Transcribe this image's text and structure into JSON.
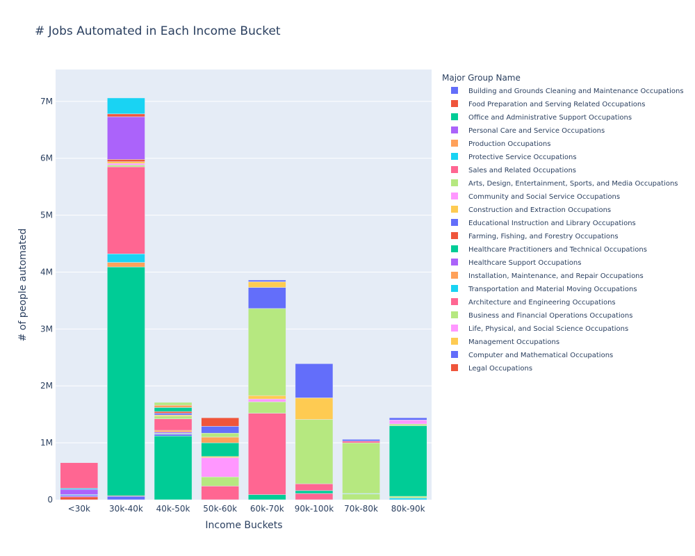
{
  "chart_data": {
    "type": "bar",
    "barmode": "stack",
    "title": "# Jobs Automated in Each Income Bucket",
    "xlabel": "Income Buckets",
    "ylabel": "# of people automated",
    "categories": [
      "<30k",
      "30k-40k",
      "40k-50k",
      "50k-60k",
      "60k-70k",
      "90k-100k",
      "70k-80k",
      "80k-90k"
    ],
    "ylim": [
      0,
      7560000
    ],
    "yticks": [
      0,
      1000000,
      2000000,
      3000000,
      4000000,
      5000000,
      6000000,
      7000000
    ],
    "ytick_labels": [
      "0",
      "1M",
      "2M",
      "3M",
      "4M",
      "5M",
      "6M",
      "7M"
    ],
    "grid": true,
    "legend_title": "Major Group Name",
    "legend_position": "right",
    "series": [
      {
        "name": "Building and Grounds Cleaning and Maintenance Occupations",
        "color": "#636efa",
        "values": [
          0,
          0,
          0,
          0,
          0,
          0,
          0,
          0
        ]
      },
      {
        "name": "Food Preparation and Serving Related Occupations",
        "color": "#EF553B",
        "values": [
          50000,
          0,
          0,
          0,
          0,
          0,
          0,
          0
        ]
      },
      {
        "name": "Office and Administrative Support Occupations",
        "color": "#00cc96",
        "values": [
          0,
          0,
          1120000,
          0,
          0,
          0,
          0,
          0
        ]
      },
      {
        "name": "Personal Care and Service Occupations",
        "color": "#ab63fa",
        "values": [
          25000,
          0,
          0,
          0,
          0,
          0,
          0,
          0
        ]
      },
      {
        "name": "Production Occupations",
        "color": "#FFA15A",
        "values": [
          0,
          0,
          0,
          0,
          0,
          0,
          0,
          0
        ]
      },
      {
        "name": "Protective Service Occupations",
        "color": "#19d3f3",
        "values": [
          15000,
          0,
          0,
          0,
          0,
          0,
          0,
          0
        ]
      },
      {
        "name": "Sales and Related Occupations",
        "color": "#FF6692",
        "values": [
          0,
          0,
          0,
          0,
          0,
          0,
          0,
          0
        ]
      },
      {
        "name": "Arts, Design, Entertainment, Sports, and Media Occupations",
        "color": "#B6E880",
        "values": [
          0,
          0,
          0,
          0,
          0,
          0,
          0,
          0
        ]
      },
      {
        "name": "Community and Social Service Occupations",
        "color": "#FF97FF",
        "values": [
          0,
          0,
          0,
          0,
          0,
          0,
          0,
          0
        ]
      },
      {
        "name": "Construction and Extraction Occupations",
        "color": "#FECB52",
        "values": [
          0,
          0,
          0,
          0,
          0,
          0,
          0,
          0
        ]
      },
      {
        "name": "Educational Instruction and Library Occupations",
        "color": "#636efa",
        "values": [
          0,
          60000,
          30000,
          0,
          0,
          0,
          0,
          0
        ]
      },
      {
        "name": "Farming, Fishing, and Forestry Occupations",
        "color": "#EF553B",
        "values": [
          0,
          10000,
          10000,
          0,
          0,
          0,
          0,
          0
        ]
      },
      {
        "name": "Healthcare Practitioners and Technical Occupations",
        "color": "#00cc96",
        "values": [
          0,
          4020000,
          10000,
          0,
          90000,
          0,
          0,
          0
        ]
      },
      {
        "name": "Healthcare Support Occupations",
        "color": "#ab63fa",
        "values": [
          90000,
          0,
          20000,
          0,
          0,
          0,
          0,
          0
        ]
      },
      {
        "name": "Installation, Maintenance, and Repair Occupations",
        "color": "#FFA15A",
        "values": [
          0,
          80000,
          30000,
          0,
          0,
          0,
          0,
          0
        ]
      },
      {
        "name": "Transportation and Material Moving Occupations",
        "color": "#19d3f3",
        "values": [
          20000,
          150000,
          0,
          0,
          0,
          0,
          0,
          0
        ]
      },
      {
        "name": "Architecture and Engineering Occupations",
        "color": "#FF6692",
        "values": [
          450000,
          1530000,
          200000,
          240000,
          1430000,
          110000,
          0,
          0
        ]
      },
      {
        "name": "Business and Financial Operations Occupations",
        "color": "#B6E880",
        "values": [
          0,
          30000,
          50000,
          160000,
          200000,
          0,
          0,
          0
        ]
      },
      {
        "name": "Life, Physical, and Social Science Occupations",
        "color": "#FF97FF",
        "values": [
          0,
          30000,
          0,
          340000,
          50000,
          0,
          0,
          0
        ]
      },
      {
        "name": "Management Occupations",
        "color": "#FECB52",
        "values": [
          0,
          30000,
          20000,
          20000,
          60000,
          0,
          0,
          0
        ]
      },
      {
        "name": "Computer and Mathematical Occupations",
        "color": "#636efa",
        "values": [
          0,
          0,
          30000,
          0,
          0,
          0,
          0,
          0
        ]
      },
      {
        "name": "Legal Occupations",
        "color": "#EF553B",
        "values": [
          0,
          40000,
          30000,
          0,
          0,
          0,
          0,
          0
        ]
      },
      {
        "name": "Building and Grounds Cleaning and Maintenance Occupations",
        "color": "#636efa",
        "values": [
          0,
          0,
          0,
          0,
          0,
          0,
          0,
          0
        ],
        "showlegend": false
      },
      {
        "name": "Office and Administrative Support Occupations",
        "color": "#00cc96",
        "values": [
          0,
          0,
          70000,
          240000,
          0,
          0,
          0,
          0
        ],
        "showlegend": false
      },
      {
        "name": "Production Occupations",
        "color": "#FFA15A",
        "values": [
          0,
          0,
          40000,
          100000,
          0,
          0,
          0,
          0
        ],
        "showlegend": false
      },
      {
        "name": "Arts, Design, Entertainment, Sports, and Media Occupations",
        "color": "#B6E880",
        "values": [
          0,
          0,
          50000,
          70000,
          1530000,
          0,
          0,
          0
        ],
        "showlegend": false
      },
      {
        "name": "Building and Grounds Cleaning and Maintenance Occupations",
        "color": "#636efa",
        "values": [
          0,
          0,
          0,
          120000,
          370000,
          0,
          0,
          0
        ],
        "showlegend": false
      },
      {
        "name": "Food Preparation and Serving Related Occupations",
        "color": "#EF553B",
        "values": [
          0,
          0,
          0,
          150000,
          0,
          0,
          0,
          0
        ],
        "showlegend": false
      },
      {
        "name": "Construction and Extraction Occupations",
        "color": "#FECB52",
        "values": [
          0,
          0,
          0,
          0,
          100000,
          0,
          0,
          0
        ],
        "showlegend": false
      },
      {
        "name": "Office and Administrative Support Occupations",
        "color": "#00cc96",
        "values": [
          0,
          0,
          0,
          0,
          0,
          50000,
          0,
          0
        ],
        "showlegend": false
      },
      {
        "name": "Architecture and Engineering Occupations",
        "color": "#FF6692",
        "values": [
          0,
          0,
          0,
          0,
          0,
          120000,
          0,
          0
        ],
        "showlegend": false
      },
      {
        "name": "Business and Financial Operations Occupations",
        "color": "#B6E880",
        "values": [
          0,
          0,
          0,
          0,
          0,
          1130000,
          100000,
          0
        ],
        "showlegend": false
      },
      {
        "name": "Management Occupations",
        "color": "#FECB52",
        "values": [
          0,
          0,
          0,
          0,
          0,
          380000,
          0,
          0
        ],
        "showlegend": false
      },
      {
        "name": "Building and Grounds Cleaning and Maintenance Occupations",
        "color": "#636efa",
        "values": [
          0,
          0,
          0,
          0,
          0,
          600000,
          0,
          0
        ],
        "showlegend": false
      },
      {
        "name": "Transportation and Material Moving Occupations",
        "color": "#19d3f3",
        "values": [
          0,
          0,
          0,
          0,
          0,
          0,
          10000,
          30000
        ],
        "showlegend": false
      },
      {
        "name": "Arts, Design, Entertainment, Sports, and Media Occupations",
        "color": "#B6E880",
        "values": [
          0,
          0,
          0,
          0,
          0,
          0,
          890000,
          30000
        ],
        "showlegend": false
      },
      {
        "name": "Sales and Related Occupations",
        "color": "#FF6692",
        "values": [
          0,
          0,
          0,
          0,
          0,
          0,
          30000,
          0
        ],
        "showlegend": false
      },
      {
        "name": "Building and Grounds Cleaning and Maintenance Occupations",
        "color": "#636efa",
        "values": [
          0,
          0,
          0,
          0,
          0,
          0,
          30000,
          0
        ],
        "showlegend": false
      },
      {
        "name": "Healthcare Practitioners and Technical Occupations",
        "color": "#00cc96",
        "values": [
          0,
          0,
          0,
          0,
          0,
          0,
          0,
          1240000
        ],
        "showlegend": false
      },
      {
        "name": "Arts, Design, Entertainment, Sports, and Media Occupations",
        "color": "#B6E880",
        "values": [
          0,
          0,
          0,
          0,
          0,
          0,
          0,
          30000
        ],
        "showlegend": false
      },
      {
        "name": "Life, Physical, and Social Science Occupations",
        "color": "#FF97FF",
        "values": [
          0,
          0,
          0,
          0,
          0,
          0,
          0,
          70000
        ],
        "showlegend": false
      },
      {
        "name": "Educational Instruction and Library Occupations",
        "color": "#636efa",
        "values": [
          0,
          0,
          0,
          0,
          0,
          0,
          0,
          40000
        ],
        "showlegend": false
      },
      {
        "name": "Healthcare Support Occupations",
        "color": "#ab63fa",
        "values": [
          0,
          750000,
          0,
          0,
          0,
          0,
          0,
          0
        ],
        "showlegend": false
      },
      {
        "name": "Food Preparation and Serving Related Occupations",
        "color": "#EF553B",
        "values": [
          0,
          50000,
          0,
          0,
          0,
          0,
          0,
          0
        ],
        "showlegend": false
      },
      {
        "name": "Protective Service Occupations",
        "color": "#19d3f3",
        "values": [
          0,
          280000,
          0,
          0,
          0,
          0,
          0,
          0
        ],
        "showlegend": false
      },
      {
        "name": "Computer and Mathematical Occupations",
        "color": "#636efa",
        "values": [
          0,
          0,
          0,
          0,
          30000,
          0,
          0,
          0
        ],
        "showlegend": false
      },
      {
        "name": "Installation, Maintenance, and Repair Occupations",
        "color": "#FFA15A",
        "values": [
          0,
          0,
          0,
          0,
          0,
          0,
          0,
          0
        ],
        "showlegend": false
      }
    ]
  }
}
